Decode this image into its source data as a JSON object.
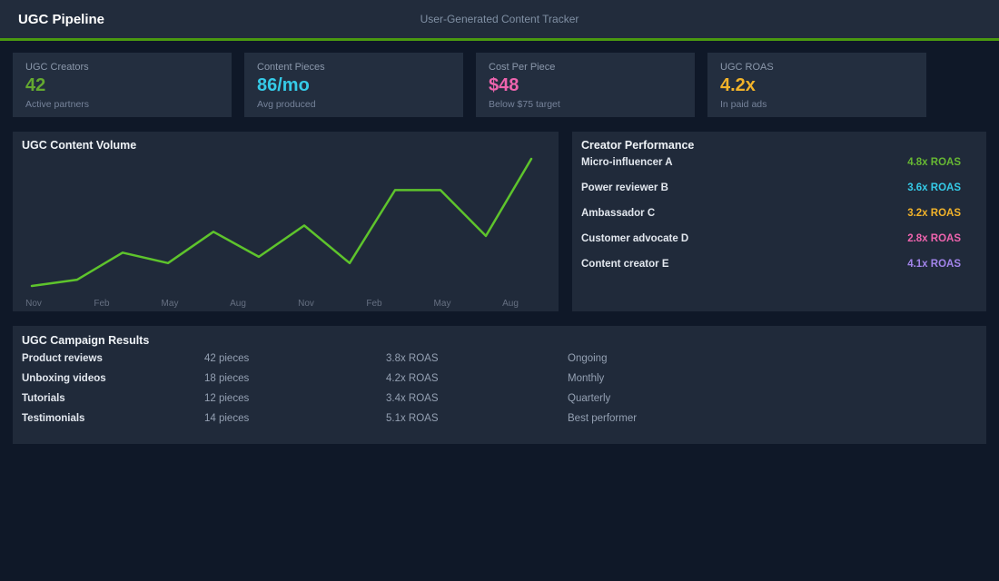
{
  "header": {
    "title": "UGC Pipeline",
    "subtitle": "User-Generated Content Tracker",
    "accent_color": "#4a9a10"
  },
  "kpis": [
    {
      "label": "UGC Creators",
      "value": "42",
      "sub": "Active partners",
      "color": "#64a930"
    },
    {
      "label": "Content Pieces",
      "value": "86/mo",
      "sub": "Avg produced",
      "color": "#35cbe8"
    },
    {
      "label": "Cost Per Piece",
      "value": "$48",
      "sub": "Below $75 target",
      "color": "#ee64ae"
    },
    {
      "label": "UGC ROAS",
      "value": "4.2x",
      "sub": "In paid ads",
      "color": "#f2b32a"
    }
  ],
  "chart_data": {
    "type": "line",
    "title": "UGC Content Volume",
    "x_tick_labels": [
      "Nov",
      "Feb",
      "May",
      "Aug",
      "Nov",
      "Feb",
      "May",
      "Aug"
    ],
    "values": [
      56,
      59,
      72,
      67,
      82,
      70,
      85,
      67,
      102,
      102,
      80,
      117
    ],
    "ylim": [
      56,
      117
    ],
    "grid": false,
    "legend": false,
    "line_color": "#5ec42c"
  },
  "creator_performance": {
    "title": "Creator Performance",
    "rows": [
      {
        "name": "Micro-influencer A",
        "roas": "4.8x ROAS",
        "color": "#67b833"
      },
      {
        "name": "Power reviewer B",
        "roas": "3.6x ROAS",
        "color": "#35cbe8"
      },
      {
        "name": "Ambassador C",
        "roas": "3.2x ROAS",
        "color": "#f2b32a"
      },
      {
        "name": "Customer advocate D",
        "roas": "2.8x ROAS",
        "color": "#ee64ae"
      },
      {
        "name": "Content creator E",
        "roas": "4.1x ROAS",
        "color": "#a284ea"
      }
    ]
  },
  "campaign_results": {
    "title": "UGC Campaign Results",
    "rows": [
      [
        "Product reviews",
        "42 pieces",
        "3.8x ROAS",
        "Ongoing"
      ],
      [
        "Unboxing videos",
        "18 pieces",
        "4.2x ROAS",
        "Monthly"
      ],
      [
        "Tutorials",
        "12 pieces",
        "3.4x ROAS",
        "Quarterly"
      ],
      [
        "Testimonials",
        "14 pieces",
        "5.1x ROAS",
        "Best performer"
      ]
    ]
  }
}
